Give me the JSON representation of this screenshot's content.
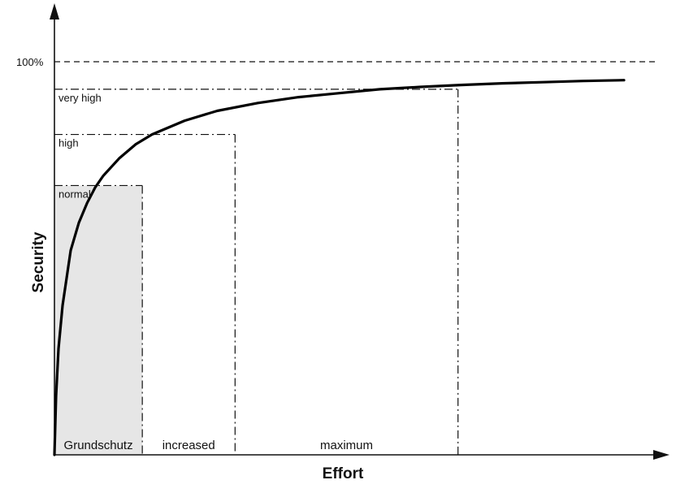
{
  "chart_data": {
    "type": "line",
    "title": "",
    "xlabel": "Effort",
    "ylabel": "Security",
    "ylim": [
      0,
      100
    ],
    "y_reference": {
      "label": "100%",
      "value": 100
    },
    "curve": {
      "x": [
        0,
        2,
        5,
        10,
        20,
        30,
        40,
        50,
        60,
        80,
        100,
        120,
        160,
        200,
        250,
        300,
        350,
        400,
        450,
        500,
        550,
        600,
        650,
        700
      ],
      "y": [
        0,
        15,
        27,
        38,
        52,
        59,
        64,
        68,
        71,
        75.5,
        79,
        81.5,
        85,
        87.5,
        89.5,
        91,
        92,
        93,
        93.6,
        94.1,
        94.5,
        94.8,
        95.1,
        95.3
      ]
    },
    "levels": [
      {
        "label": "normal",
        "security": 68.5,
        "effort": 108
      },
      {
        "label": "high",
        "security": 81.5,
        "effort": 222
      },
      {
        "label": "very high",
        "security": 93,
        "effort": 496
      }
    ],
    "effort_bands": [
      {
        "label": "Grundschutz",
        "from": 0,
        "to": 108,
        "shaded": true,
        "shade_color": "#e6e6e6"
      },
      {
        "label": "increased",
        "from": 108,
        "to": 222,
        "shaded": false
      },
      {
        "label": "maximum",
        "from": 222,
        "to": 496,
        "shaded": false
      }
    ]
  }
}
